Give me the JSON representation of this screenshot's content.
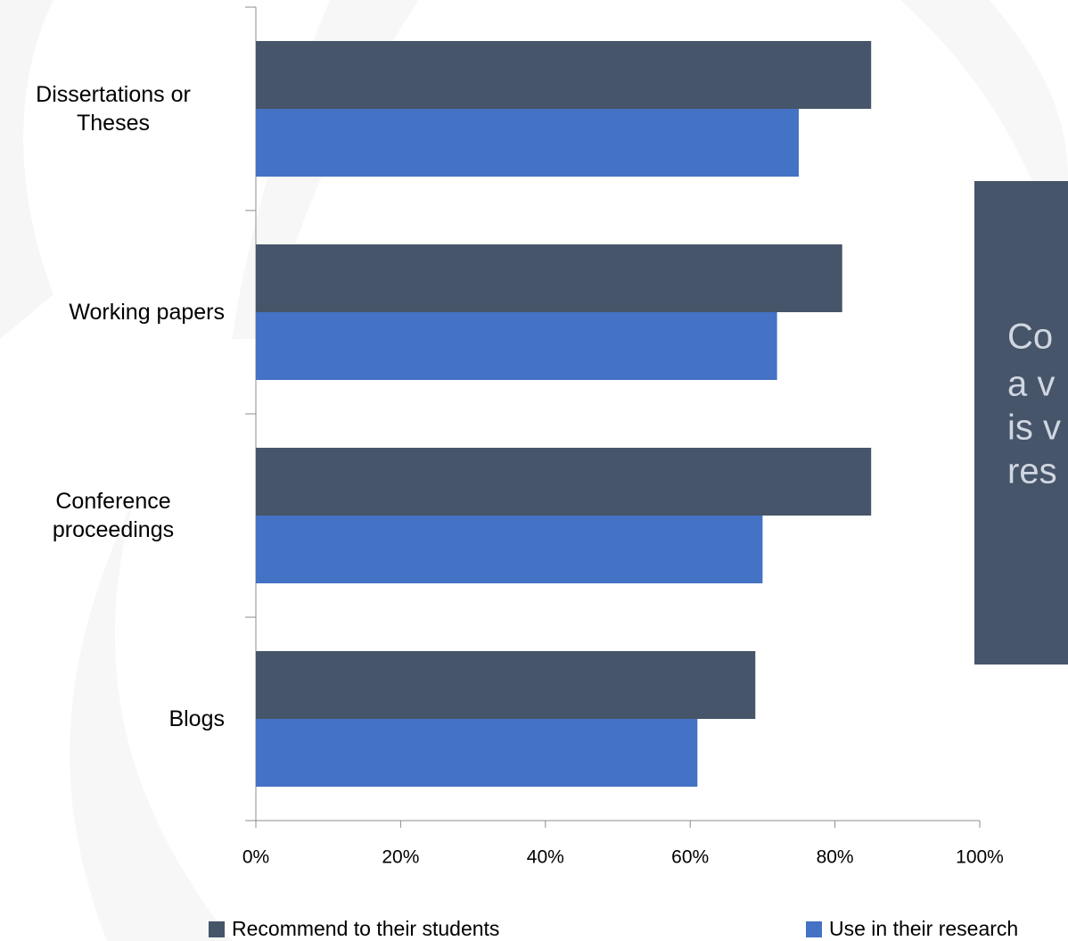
{
  "chart_data": {
    "type": "bar",
    "orientation": "horizontal",
    "categories": [
      "Dissertations or Theses",
      "Working papers",
      "Conference proceedings",
      "Blogs"
    ],
    "series": [
      {
        "name": "Recommend to their students",
        "color": "#465569",
        "values": [
          85,
          81,
          85,
          69
        ]
      },
      {
        "name": "Use in their research",
        "color": "#4472c4",
        "values": [
          75,
          72,
          70,
          61
        ]
      }
    ],
    "xlim": [
      0,
      100
    ],
    "xticks": [
      {
        "value": 0,
        "label": "0%"
      },
      {
        "value": 20,
        "label": "20%"
      },
      {
        "value": 40,
        "label": "40%"
      },
      {
        "value": 60,
        "label": "60%"
      },
      {
        "value": 80,
        "label": "80%"
      },
      {
        "value": 100,
        "label": "100%"
      }
    ],
    "legend": "bottom",
    "annotation_lines": [
      "Co",
      "a v",
      "is v",
      "res"
    ],
    "annotation_color": "#465569"
  }
}
